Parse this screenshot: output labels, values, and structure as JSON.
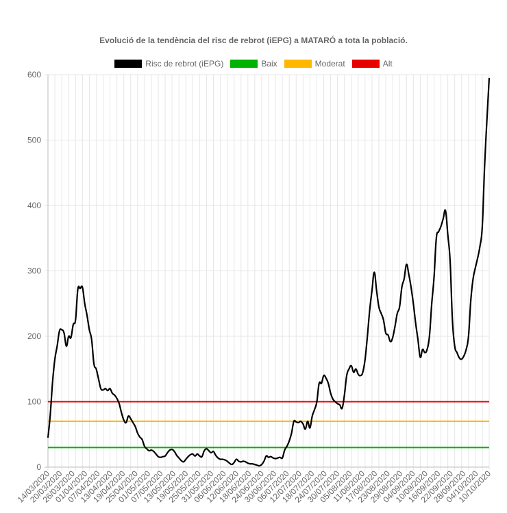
{
  "chart_data": {
    "type": "line",
    "title": "Evolució de la tendència del risc de rebrot (iEPG) a MATARÓ a tota la població.",
    "ylim": [
      0,
      600
    ],
    "yticks": [
      0,
      100,
      200,
      300,
      400,
      500,
      600
    ],
    "grid": true,
    "legend_position": "top",
    "x_tick_labels": [
      "14/03/2020",
      "20/03/2020",
      "26/03/2020",
      "01/04/2020",
      "07/04/2020",
      "13/04/2020",
      "19/04/2020",
      "25/04/2020",
      "01/05/2020",
      "07/05/2020",
      "13/05/2020",
      "19/05/2020",
      "25/05/2020",
      "31/05/2020",
      "06/06/2020",
      "12/06/2020",
      "18/06/2020",
      "24/06/2020",
      "30/06/2020",
      "06/07/2020",
      "12/07/2020",
      "18/07/2020",
      "24/07/2020",
      "30/07/2020",
      "05/08/2020",
      "11/08/2020",
      "17/08/2020",
      "23/08/2020",
      "29/08/2020",
      "04/09/2020",
      "10/09/2020",
      "16/09/2020",
      "22/09/2020",
      "28/09/2020",
      "04/10/2020",
      "10/10/2020"
    ],
    "series": [
      {
        "name": "Risc de rebrot (iEPG)",
        "color": "#000000",
        "points": [
          [
            0,
            45
          ],
          [
            1,
            80
          ],
          [
            2,
            130
          ],
          [
            3,
            165
          ],
          [
            4,
            185
          ],
          [
            5,
            208
          ],
          [
            6,
            210
          ],
          [
            7,
            205
          ],
          [
            8,
            185
          ],
          [
            9,
            200
          ],
          [
            10,
            198
          ],
          [
            11,
            218
          ],
          [
            12,
            225
          ],
          [
            13,
            272
          ],
          [
            14,
            273
          ],
          [
            15,
            275
          ],
          [
            16,
            250
          ],
          [
            17,
            232
          ],
          [
            18,
            210
          ],
          [
            19,
            195
          ],
          [
            20,
            158
          ],
          [
            21,
            150
          ],
          [
            22,
            135
          ],
          [
            23,
            120
          ],
          [
            24,
            118
          ],
          [
            25,
            120
          ],
          [
            26,
            117
          ],
          [
            27,
            120
          ],
          [
            28,
            113
          ],
          [
            29,
            110
          ],
          [
            30,
            105
          ],
          [
            31,
            97
          ],
          [
            32,
            83
          ],
          [
            33,
            72
          ],
          [
            34,
            68
          ],
          [
            35,
            78
          ],
          [
            36,
            74
          ],
          [
            37,
            68
          ],
          [
            38,
            62
          ],
          [
            39,
            52
          ],
          [
            40,
            46
          ],
          [
            41,
            42
          ],
          [
            42,
            32
          ],
          [
            43,
            28
          ],
          [
            44,
            25
          ],
          [
            45,
            26
          ],
          [
            46,
            24
          ],
          [
            47,
            20
          ],
          [
            48,
            16
          ],
          [
            49,
            15
          ],
          [
            50,
            16
          ],
          [
            51,
            17
          ],
          [
            52,
            22
          ],
          [
            53,
            26
          ],
          [
            54,
            27
          ],
          [
            55,
            24
          ],
          [
            56,
            18
          ],
          [
            57,
            14
          ],
          [
            58,
            10
          ],
          [
            59,
            8
          ],
          [
            60,
            12
          ],
          [
            61,
            16
          ],
          [
            62,
            19
          ],
          [
            63,
            20
          ],
          [
            64,
            17
          ],
          [
            65,
            20
          ],
          [
            66,
            17
          ],
          [
            67,
            16
          ],
          [
            68,
            25
          ],
          [
            69,
            28
          ],
          [
            70,
            25
          ],
          [
            71,
            22
          ],
          [
            72,
            24
          ],
          [
            73,
            18
          ],
          [
            74,
            14
          ],
          [
            75,
            12
          ],
          [
            76,
            12
          ],
          [
            77,
            11
          ],
          [
            78,
            9
          ],
          [
            79,
            6
          ],
          [
            80,
            4
          ],
          [
            81,
            7
          ],
          [
            82,
            12
          ],
          [
            83,
            9
          ],
          [
            84,
            8
          ],
          [
            85,
            9
          ],
          [
            86,
            8
          ],
          [
            87,
            6
          ],
          [
            88,
            5
          ],
          [
            89,
            5
          ],
          [
            90,
            4
          ],
          [
            91,
            3
          ],
          [
            92,
            2
          ],
          [
            93,
            4
          ],
          [
            94,
            9
          ],
          [
            95,
            17
          ],
          [
            96,
            15
          ],
          [
            97,
            16
          ],
          [
            98,
            14
          ],
          [
            99,
            13
          ],
          [
            100,
            14
          ],
          [
            101,
            15
          ],
          [
            102,
            14
          ],
          [
            103,
            26
          ],
          [
            104,
            32
          ],
          [
            105,
            40
          ],
          [
            106,
            52
          ],
          [
            107,
            70
          ],
          [
            108,
            69
          ],
          [
            109,
            68
          ],
          [
            110,
            70
          ],
          [
            111,
            66
          ],
          [
            112,
            58
          ],
          [
            113,
            70
          ],
          [
            114,
            60
          ],
          [
            115,
            78
          ],
          [
            116,
            88
          ],
          [
            117,
            100
          ],
          [
            118,
            128
          ],
          [
            119,
            128
          ],
          [
            120,
            140
          ],
          [
            121,
            136
          ],
          [
            122,
            128
          ],
          [
            123,
            113
          ],
          [
            124,
            104
          ],
          [
            125,
            100
          ],
          [
            126,
            97
          ],
          [
            127,
            95
          ],
          [
            128,
            90
          ],
          [
            129,
            110
          ],
          [
            130,
            140
          ],
          [
            131,
            150
          ],
          [
            132,
            155
          ],
          [
            133,
            145
          ],
          [
            134,
            150
          ],
          [
            135,
            142
          ],
          [
            136,
            140
          ],
          [
            137,
            145
          ],
          [
            138,
            165
          ],
          [
            139,
            200
          ],
          [
            140,
            240
          ],
          [
            141,
            270
          ],
          [
            142,
            298
          ],
          [
            143,
            270
          ],
          [
            144,
            245
          ],
          [
            145,
            235
          ],
          [
            146,
            225
          ],
          [
            147,
            205
          ],
          [
            148,
            202
          ],
          [
            149,
            192
          ],
          [
            150,
            198
          ],
          [
            151,
            215
          ],
          [
            152,
            235
          ],
          [
            153,
            245
          ],
          [
            154,
            275
          ],
          [
            155,
            288
          ],
          [
            156,
            310
          ],
          [
            157,
            295
          ],
          [
            158,
            275
          ],
          [
            159,
            250
          ],
          [
            160,
            220
          ],
          [
            161,
            195
          ],
          [
            162,
            168
          ],
          [
            163,
            180
          ],
          [
            164,
            175
          ],
          [
            165,
            180
          ],
          [
            166,
            200
          ],
          [
            167,
            250
          ],
          [
            168,
            290
          ],
          [
            169,
            350
          ],
          [
            170,
            360
          ],
          [
            171,
            368
          ],
          [
            172,
            380
          ],
          [
            173,
            392
          ],
          [
            174,
            355
          ],
          [
            175,
            315
          ],
          [
            176,
            225
          ],
          [
            177,
            185
          ],
          [
            178,
            175
          ],
          [
            179,
            167
          ],
          [
            180,
            165
          ],
          [
            181,
            170
          ],
          [
            182,
            180
          ],
          [
            183,
            200
          ],
          [
            184,
            255
          ],
          [
            185,
            288
          ],
          [
            186,
            305
          ],
          [
            187,
            320
          ],
          [
            188,
            338
          ],
          [
            189,
            368
          ],
          [
            190,
            460
          ],
          [
            191,
            530
          ],
          [
            192,
            595
          ]
        ]
      },
      {
        "name": "Baix",
        "color": "#00b300",
        "constant": 30
      },
      {
        "name": "Moderat",
        "color": "#ffb800",
        "constant": 70
      },
      {
        "name": "Alt",
        "color": "#e60000",
        "constant": 100
      }
    ]
  }
}
